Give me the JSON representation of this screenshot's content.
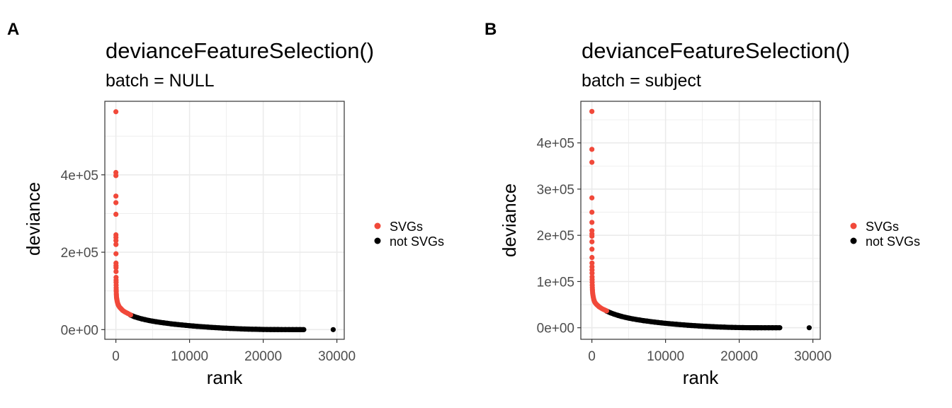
{
  "panels": {
    "a": {
      "letter": "A"
    },
    "b": {
      "letter": "B"
    }
  },
  "colors": {
    "svgs": "#f1493a",
    "not_svgs": "#000000",
    "grid": "#ebebeb",
    "border": "#333333"
  },
  "chart_data": [
    {
      "type": "scatter",
      "title": "devianceFeatureSelection()",
      "subtitle": "batch = NULL",
      "xlabel": "rank",
      "ylabel": "deviance",
      "xlim": [
        -1500,
        31000
      ],
      "ylim": [
        -25000,
        590000
      ],
      "x_ticks": [
        0,
        10000,
        20000,
        30000
      ],
      "x_tick_labels": [
        "0",
        "10000",
        "20000",
        "30000"
      ],
      "y_ticks": [
        0,
        200000,
        400000
      ],
      "y_tick_labels": [
        "0e+00",
        "2e+05",
        "4e+05"
      ],
      "grid": true,
      "legend_position": "right",
      "series": [
        {
          "name": "SVGs",
          "color": "#f1493a",
          "points": [
            [
              1,
              563000
            ],
            [
              2,
              406000
            ],
            [
              3,
              398000
            ],
            [
              4,
              345000
            ],
            [
              5,
              328000
            ],
            [
              6,
              298000
            ],
            [
              8,
              245000
            ],
            [
              9,
              238000
            ],
            [
              10,
              230000
            ],
            [
              12,
              220000
            ],
            [
              14,
              196000
            ],
            [
              16,
              172000
            ],
            [
              18,
              165000
            ],
            [
              20,
              160000
            ],
            [
              22,
              150000
            ],
            [
              25,
              135000
            ],
            [
              28,
              128000
            ],
            [
              30,
              122000
            ],
            [
              35,
              115000
            ],
            [
              40,
              108000
            ],
            [
              45,
              102000
            ],
            [
              50,
              98000
            ],
            [
              60,
              93000
            ],
            [
              70,
              89000
            ],
            [
              80,
              85000
            ],
            [
              100,
              82000
            ],
            [
              120,
              79000
            ],
            [
              150,
              76000
            ],
            [
              180,
              73000
            ],
            [
              220,
              70000
            ],
            [
              260,
              67000
            ],
            [
              300,
              65000
            ],
            [
              350,
              63000
            ],
            [
              400,
              61000
            ],
            [
              500,
              58000
            ],
            [
              600,
              56000
            ],
            [
              700,
              54000
            ],
            [
              800,
              52000
            ],
            [
              900,
              50000
            ],
            [
              1000,
              48500
            ],
            [
              1200,
              46000
            ],
            [
              1400,
              44000
            ],
            [
              1600,
              42000
            ],
            [
              1800,
              40000
            ],
            [
              2000,
              38000
            ]
          ]
        },
        {
          "name": "not SVGs",
          "color": "#000000",
          "points": [
            [
              2000,
              37500
            ],
            [
              2500,
              33500
            ],
            [
              3000,
              30500
            ],
            [
              3500,
              27800
            ],
            [
              4000,
              25500
            ],
            [
              4500,
              23500
            ],
            [
              5000,
              21800
            ],
            [
              5500,
              20200
            ],
            [
              6000,
              18800
            ],
            [
              6500,
              17500
            ],
            [
              7000,
              16200
            ],
            [
              7500,
              15000
            ],
            [
              8000,
              13900
            ],
            [
              8500,
              12900
            ],
            [
              9000,
              11900
            ],
            [
              9500,
              11000
            ],
            [
              10000,
              10100
            ],
            [
              10500,
              9300
            ],
            [
              11000,
              8500
            ],
            [
              11500,
              7800
            ],
            [
              12000,
              7100
            ],
            [
              12500,
              6400
            ],
            [
              13000,
              5800
            ],
            [
              13500,
              5200
            ],
            [
              14000,
              4600
            ],
            [
              14500,
              4100
            ],
            [
              15000,
              3600
            ],
            [
              15500,
              3100
            ],
            [
              16000,
              2700
            ],
            [
              16500,
              2300
            ],
            [
              17000,
              1900
            ],
            [
              17500,
              1600
            ],
            [
              18000,
              1300
            ],
            [
              18500,
              1000
            ],
            [
              19000,
              800
            ],
            [
              19500,
              600
            ],
            [
              20000,
              450
            ],
            [
              20500,
              320
            ],
            [
              21000,
              220
            ],
            [
              21500,
              150
            ],
            [
              22000,
              100
            ],
            [
              22500,
              60
            ],
            [
              23000,
              30
            ],
            [
              23500,
              15
            ],
            [
              24000,
              5
            ],
            [
              24500,
              0
            ],
            [
              25000,
              0
            ],
            [
              25500,
              0
            ],
            [
              29500,
              0
            ]
          ]
        }
      ]
    },
    {
      "type": "scatter",
      "title": "devianceFeatureSelection()",
      "subtitle": "batch = subject",
      "xlabel": "rank",
      "ylabel": "deviance",
      "xlim": [
        -1500,
        31000
      ],
      "ylim": [
        -25000,
        490000
      ],
      "x_ticks": [
        0,
        10000,
        20000,
        30000
      ],
      "x_tick_labels": [
        "0",
        "10000",
        "20000",
        "30000"
      ],
      "y_ticks": [
        0,
        100000,
        200000,
        300000,
        400000
      ],
      "y_tick_labels": [
        "0e+00",
        "1e+05",
        "2e+05",
        "3e+05",
        "4e+05"
      ],
      "grid": true,
      "legend_position": "right",
      "series": [
        {
          "name": "SVGs",
          "color": "#f1493a",
          "points": [
            [
              1,
              468000
            ],
            [
              2,
              386000
            ],
            [
              3,
              358000
            ],
            [
              4,
              281000
            ],
            [
              5,
              250000
            ],
            [
              6,
              228000
            ],
            [
              7,
              210000
            ],
            [
              8,
              203000
            ],
            [
              9,
              198000
            ],
            [
              10,
              186000
            ],
            [
              12,
              170000
            ],
            [
              14,
              152000
            ],
            [
              16,
              140000
            ],
            [
              18,
              132000
            ],
            [
              20,
              125000
            ],
            [
              25,
              118000
            ],
            [
              30,
              110000
            ],
            [
              35,
              104000
            ],
            [
              40,
              98000
            ],
            [
              50,
              92000
            ],
            [
              60,
              87000
            ],
            [
              70,
              83000
            ],
            [
              80,
              80000
            ],
            [
              100,
              76000
            ],
            [
              120,
              73000
            ],
            [
              150,
              70000
            ],
            [
              180,
              67000
            ],
            [
              220,
              64000
            ],
            [
              260,
              61000
            ],
            [
              300,
              59000
            ],
            [
              350,
              57000
            ],
            [
              400,
              55000
            ],
            [
              500,
              53000
            ],
            [
              600,
              51000
            ],
            [
              700,
              49500
            ],
            [
              800,
              48000
            ],
            [
              900,
              46500
            ],
            [
              1000,
              45000
            ],
            [
              1200,
              43000
            ],
            [
              1400,
              41000
            ],
            [
              1600,
              39500
            ],
            [
              1800,
              38000
            ],
            [
              2000,
              36500
            ]
          ]
        },
        {
          "name": "not SVGs",
          "color": "#000000",
          "points": [
            [
              2000,
              36000
            ],
            [
              2500,
              32500
            ],
            [
              3000,
              29500
            ],
            [
              3500,
              26900
            ],
            [
              4000,
              24600
            ],
            [
              4500,
              22600
            ],
            [
              5000,
              20900
            ],
            [
              5500,
              19300
            ],
            [
              6000,
              17900
            ],
            [
              6500,
              16600
            ],
            [
              7000,
              15400
            ],
            [
              7500,
              14300
            ],
            [
              8000,
              13200
            ],
            [
              8500,
              12200
            ],
            [
              9000,
              11300
            ],
            [
              9500,
              10400
            ],
            [
              10000,
              9600
            ],
            [
              10500,
              8800
            ],
            [
              11000,
              8100
            ],
            [
              11500,
              7400
            ],
            [
              12000,
              6700
            ],
            [
              12500,
              6100
            ],
            [
              13000,
              5500
            ],
            [
              13500,
              4900
            ],
            [
              14000,
              4400
            ],
            [
              14500,
              3900
            ],
            [
              15000,
              3400
            ],
            [
              15500,
              3000
            ],
            [
              16000,
              2600
            ],
            [
              16500,
              2200
            ],
            [
              17000,
              1800
            ],
            [
              17500,
              1500
            ],
            [
              18000,
              1200
            ],
            [
              18500,
              950
            ],
            [
              19000,
              750
            ],
            [
              19500,
              550
            ],
            [
              20000,
              400
            ],
            [
              20500,
              280
            ],
            [
              21000,
              190
            ],
            [
              21500,
              120
            ],
            [
              22000,
              80
            ],
            [
              22500,
              45
            ],
            [
              23000,
              20
            ],
            [
              23500,
              8
            ],
            [
              24000,
              2
            ],
            [
              24500,
              0
            ],
            [
              25000,
              0
            ],
            [
              25500,
              0
            ],
            [
              29500,
              0
            ]
          ]
        }
      ]
    }
  ]
}
